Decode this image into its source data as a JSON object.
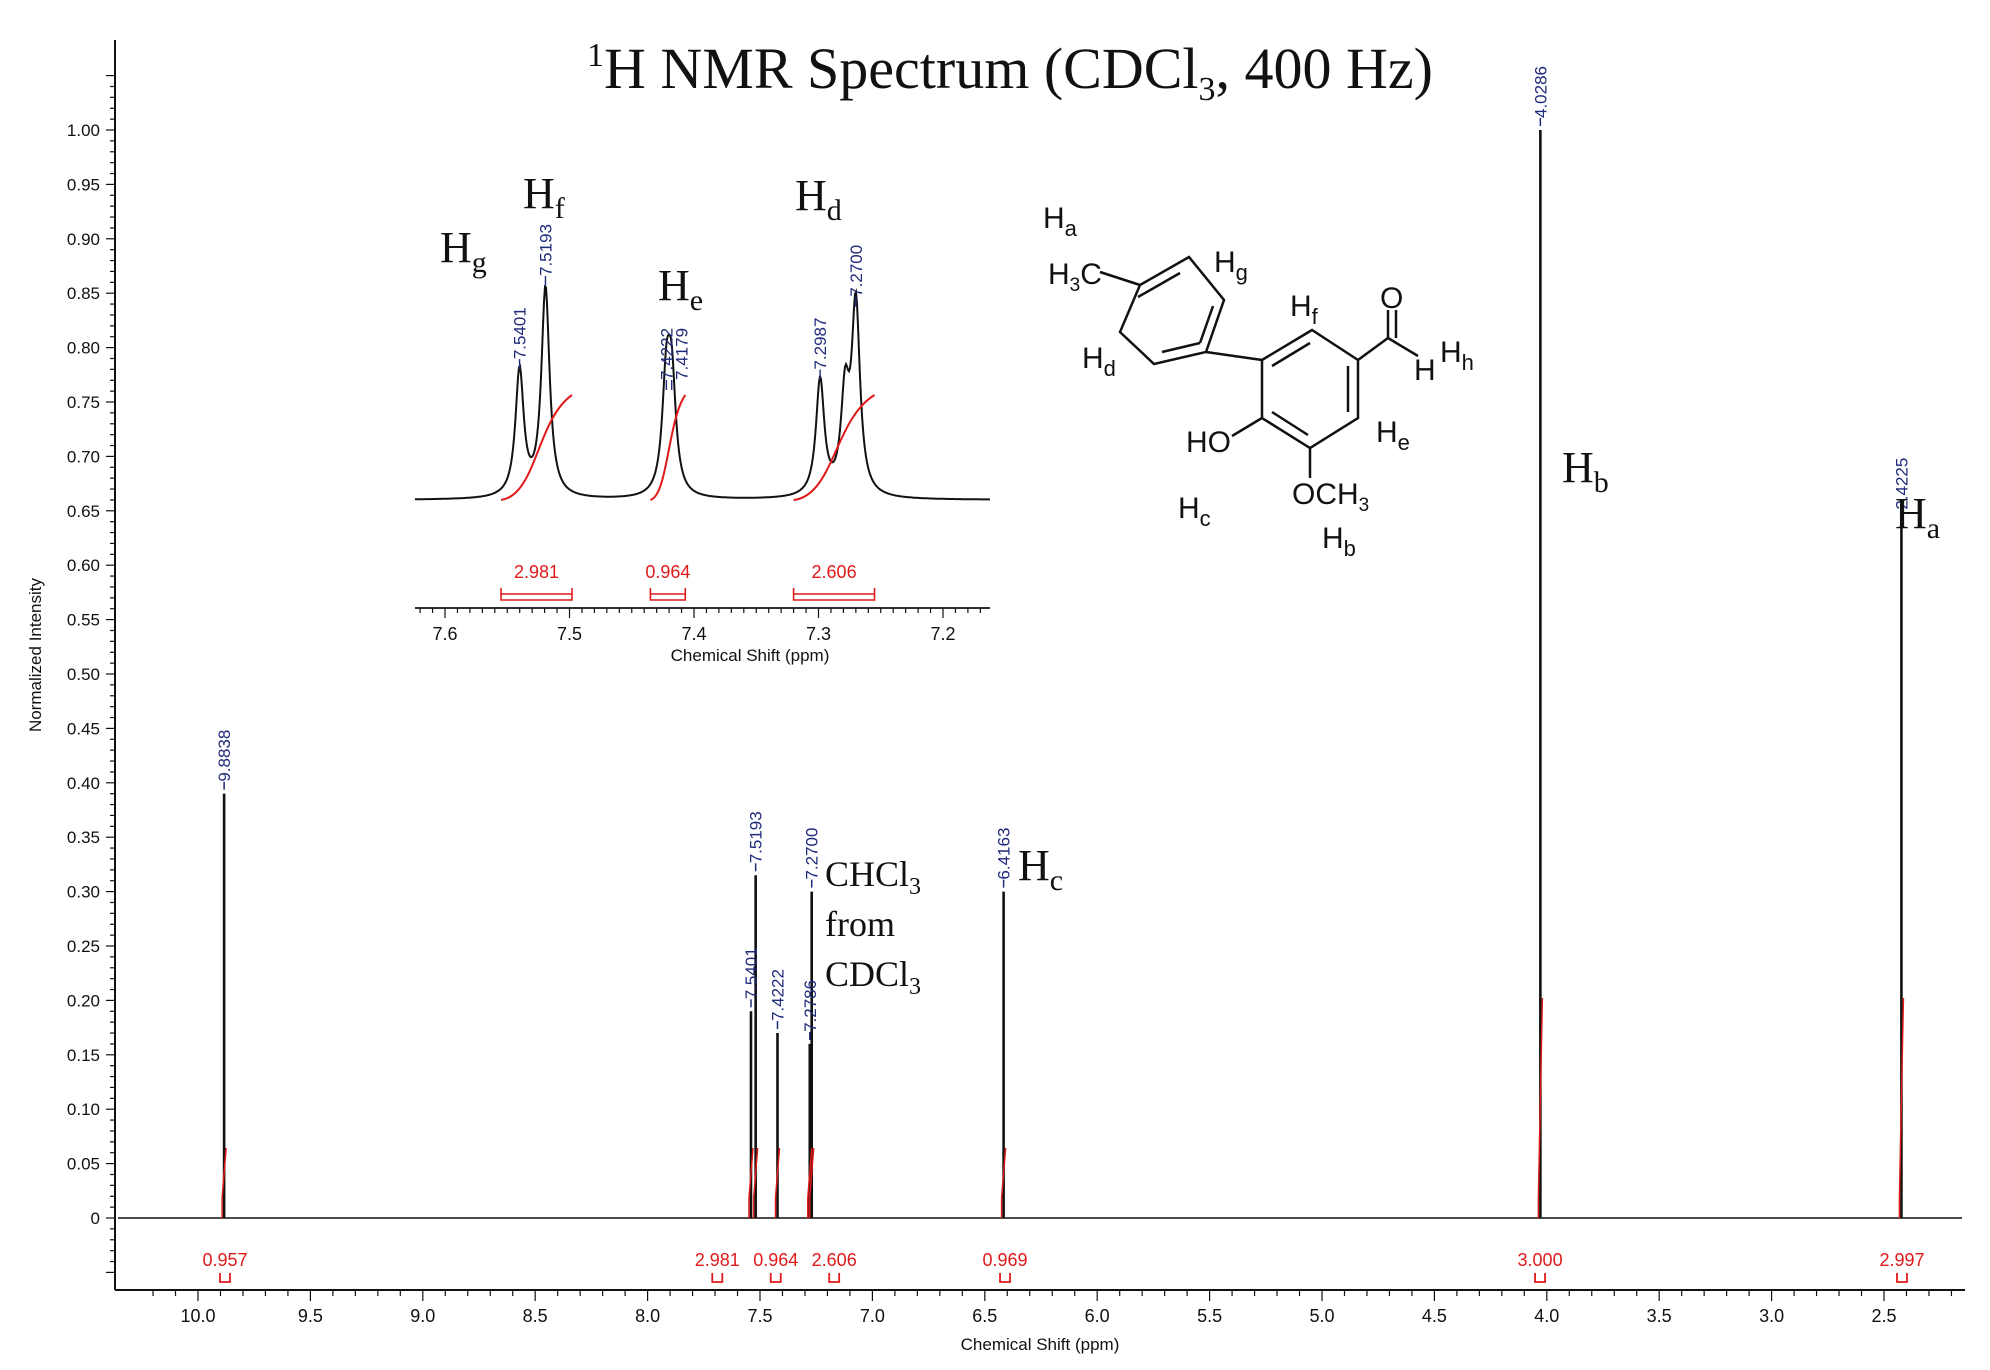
{
  "chart_data": {
    "type": "line",
    "title": "1H NMR Spectrum (CDCl3, 400 Hz)",
    "title_parts": {
      "sup": "1",
      "main_a": "H NMR Spectrum (CDCl",
      "sub": "3",
      "main_b": ", 400 Hz)"
    },
    "xlabel": "Chemical Shift (ppm)",
    "ylabel": "Normalized Intensity",
    "x_reversed": true,
    "xlim": [
      10.25,
      2.22
    ],
    "ylim": [
      -0.06,
      1.05
    ],
    "xticks": [
      "10.0",
      "9.5",
      "9.0",
      "8.5",
      "8.0",
      "7.5",
      "7.0",
      "6.5",
      "6.0",
      "5.5",
      "5.0",
      "4.5",
      "4.0",
      "3.5",
      "3.0",
      "2.5"
    ],
    "yticks": [
      "0",
      "0.05",
      "0.10",
      "0.15",
      "0.20",
      "0.25",
      "0.30",
      "0.35",
      "0.40",
      "0.45",
      "0.50",
      "0.55",
      "0.60",
      "0.65",
      "0.70",
      "0.75",
      "0.80",
      "0.85",
      "0.90",
      "0.95",
      "1.00"
    ],
    "peaks": [
      {
        "x": 9.8838,
        "y": 0.39
      },
      {
        "x": 7.5401,
        "y": 0.19
      },
      {
        "x": 7.5193,
        "y": 0.315
      },
      {
        "x": 7.4222,
        "y": 0.17
      },
      {
        "x": 7.2786,
        "y": 0.16
      },
      {
        "x": 7.27,
        "y": 0.3
      },
      {
        "x": 6.4163,
        "y": 0.3
      },
      {
        "x": 4.0286,
        "y": 1.0
      },
      {
        "x": 2.4225,
        "y": 0.64
      }
    ],
    "peak_labels": [
      "9.8838",
      "7.5401",
      "7.5193",
      "7.4222",
      "7.2786",
      "7.2700",
      "6.4163",
      "4.0286",
      "2.4225"
    ],
    "integrals": [
      {
        "x": 9.88,
        "value": "0.957"
      },
      {
        "x": 7.69,
        "value": "2.981"
      },
      {
        "x": 7.43,
        "value": "0.964"
      },
      {
        "x": 7.17,
        "value": "2.606"
      },
      {
        "x": 6.41,
        "value": "0.969"
      },
      {
        "x": 4.03,
        "value": "3.000"
      },
      {
        "x": 2.42,
        "value": "2.997"
      }
    ],
    "inset": {
      "xlabel": "Chemical Shift (ppm)",
      "xlim": [
        7.62,
        7.16
      ],
      "xticks": [
        "7.6",
        "7.5",
        "7.4",
        "7.3",
        "7.2"
      ],
      "peaks": [
        {
          "x": 7.5401,
          "y": 0.75
        },
        {
          "x": 7.5193,
          "y": 0.83
        },
        {
          "x": 7.4222,
          "y": 0.73
        },
        {
          "x": 7.4179,
          "y": 0.73
        },
        {
          "x": 7.2987,
          "y": 0.74
        },
        {
          "x": 7.2786,
          "y": 0.72
        },
        {
          "x": 7.27,
          "y": 0.81
        }
      ],
      "peak_labels": [
        "7.5401",
        "7.5193",
        "7.4222",
        "7.4179",
        "7.2987",
        "7.2700"
      ],
      "integrals": [
        {
          "from": 7.555,
          "to": 7.498,
          "value": "2.981"
        },
        {
          "from": 7.435,
          "to": 7.407,
          "value": "0.964"
        },
        {
          "from": 7.32,
          "to": 7.255,
          "value": "2.606"
        }
      ]
    },
    "annotations": {
      "hb": "H",
      "hb_sub": "b",
      "ha": "H",
      "ha_sub": "a",
      "hc": "H",
      "hc_sub": "c",
      "chcl3_a": "CHCl",
      "chcl3_sub": "3",
      "from": "from",
      "cdcl3_a": "CDCl",
      "cdcl3_sub": "3",
      "inset_hg": "H",
      "inset_hg_sub": "g",
      "inset_hf": "H",
      "inset_hf_sub": "f",
      "inset_he": "H",
      "inset_he_sub": "e",
      "inset_hd": "H",
      "inset_hd_sub": "d"
    },
    "molecule": {
      "ha": "H",
      "ha_sub": "a",
      "h3c": "H",
      "h3c_sub": "3",
      "h3c_c": "C",
      "hg": "H",
      "hg_sub": "g",
      "hf": "H",
      "hf_sub": "f",
      "o": "O",
      "h": "H",
      "hh": "H",
      "hh_sub": "h",
      "hd": "H",
      "hd_sub": "d",
      "he": "H",
      "he_sub": "e",
      "ho": "HO",
      "och3": "OCH",
      "och3_sub": "3",
      "hc": "H",
      "hc_sub": "c",
      "hb": "H",
      "hb_sub": "b"
    },
    "colors": {
      "spectrum": "#111111",
      "peak_label": "#1f2a7a",
      "integral": "#e01a1a"
    }
  }
}
